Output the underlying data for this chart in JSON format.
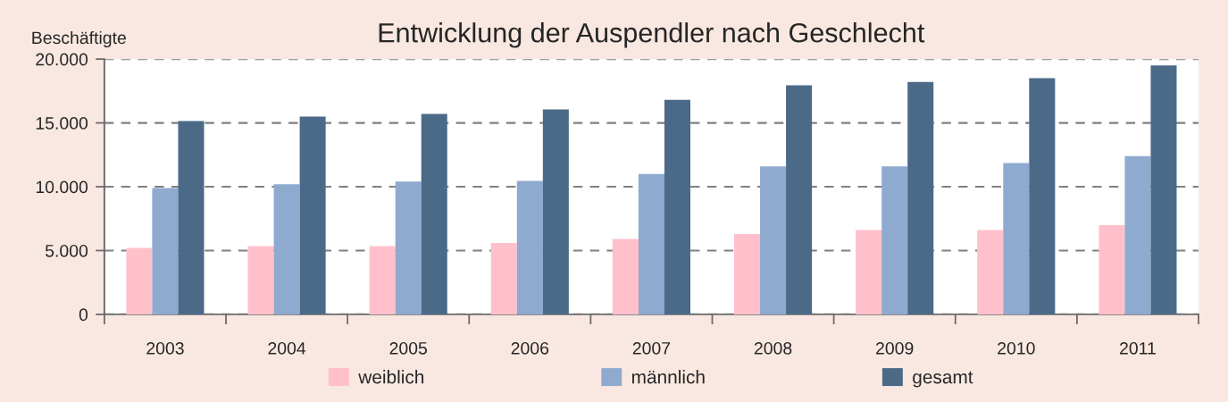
{
  "chart_data": {
    "type": "bar",
    "title": "Entwicklung der Auspendler nach Geschlecht",
    "ylabel": "Beschäftigte",
    "categories": [
      "2003",
      "2004",
      "2005",
      "2006",
      "2007",
      "2008",
      "2009",
      "2010",
      "2011"
    ],
    "series": [
      {
        "name": "weiblich",
        "color": "#ffc0cb",
        "values": [
          5200,
          5350,
          5350,
          5600,
          5900,
          6300,
          6600,
          6600,
          7000
        ]
      },
      {
        "name": "männlich",
        "color": "#8faacf",
        "values": [
          9900,
          10200,
          10400,
          10450,
          11000,
          11600,
          11600,
          11850,
          12400
        ]
      },
      {
        "name": "gesamt",
        "color": "#4b6a88",
        "values": [
          15150,
          15500,
          15700,
          16050,
          16800,
          17950,
          18200,
          18500,
          19500
        ]
      }
    ],
    "ylim": [
      0,
      20000
    ],
    "yticks": [
      0,
      {
        "value": 5000,
        "label": "5.000"
      },
      {
        "value": 10000,
        "label": "10.000"
      },
      {
        "value": 15000,
        "label": "15.000"
      },
      {
        "value": 20000,
        "label": "20.000"
      }
    ],
    "grid": "y",
    "legend": "bottom"
  }
}
